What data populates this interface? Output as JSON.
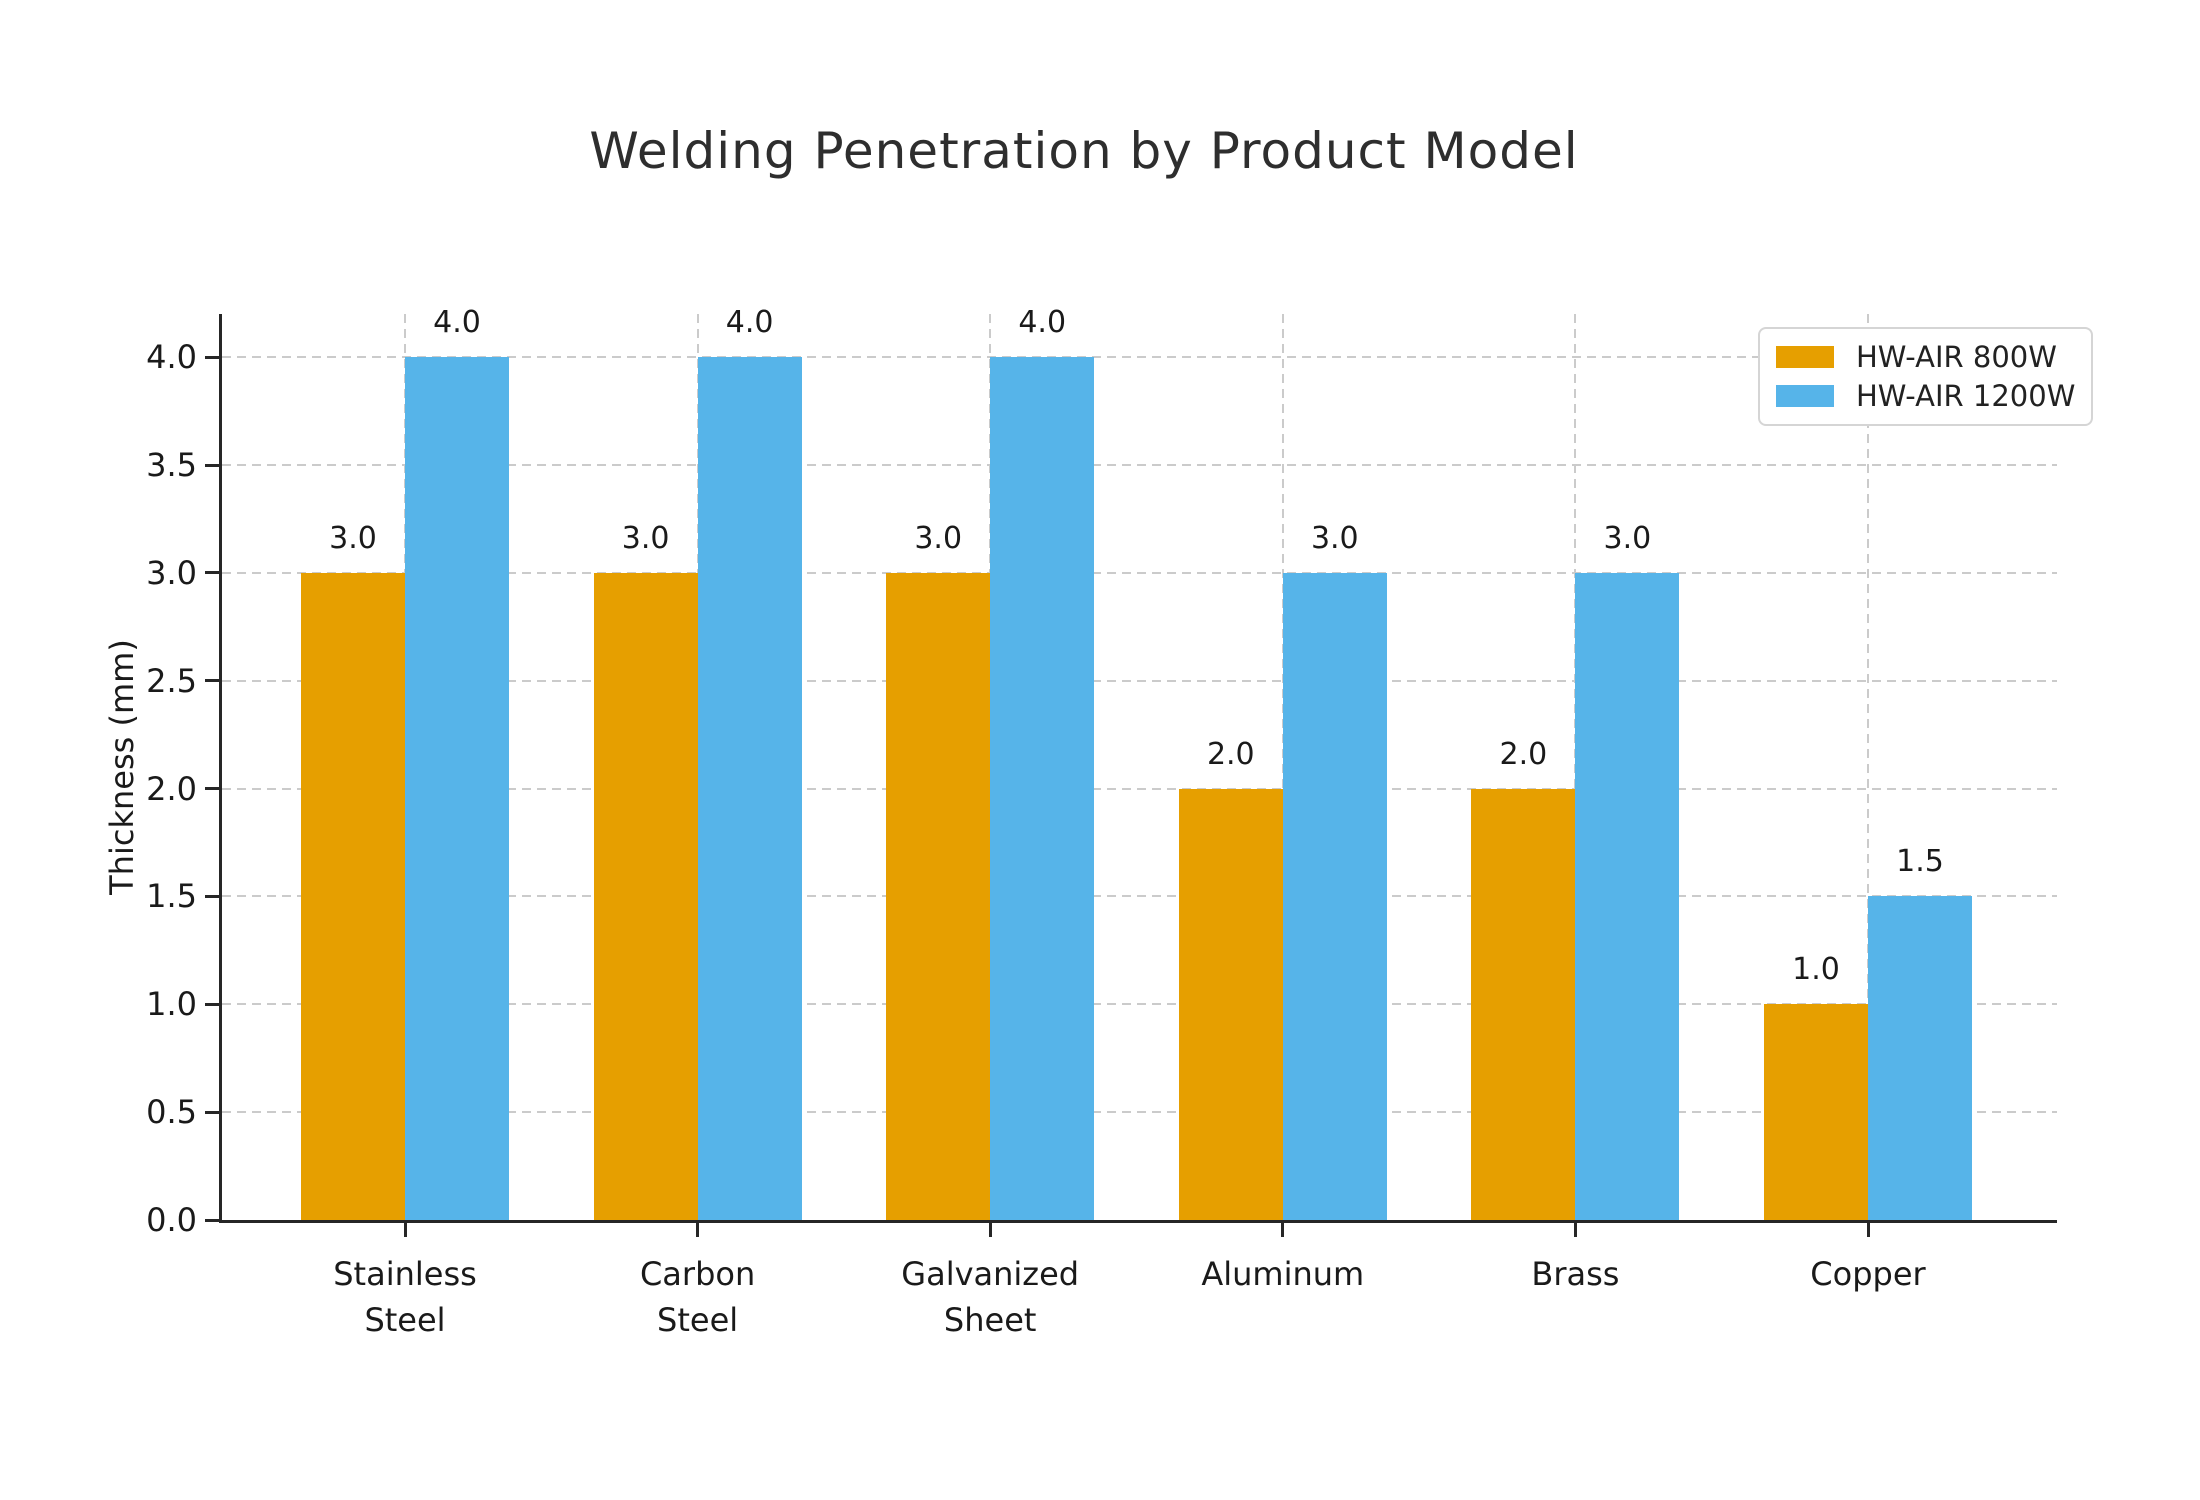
{
  "title": "Welding Penetration by Product Model",
  "chart_data": {
    "type": "bar",
    "title": "Welding Penetration by Product Model",
    "categories": [
      "Stainless Steel",
      "Carbon Steel",
      "Galvanized Sheet",
      "Aluminum",
      "Brass",
      "Copper"
    ],
    "category_label_lines": [
      [
        "Stainless",
        "Steel"
      ],
      [
        "Carbon",
        "Steel"
      ],
      [
        "Galvanized",
        "Sheet"
      ],
      [
        "Aluminum"
      ],
      [
        "Brass"
      ],
      [
        "Copper"
      ]
    ],
    "series": [
      {
        "name": "HW-AIR 800W",
        "color": "#E69F00",
        "values": [
          3.0,
          3.0,
          3.0,
          2.0,
          2.0,
          1.0
        ]
      },
      {
        "name": "HW-AIR 1200W",
        "color": "#56B4E9",
        "values": [
          4.0,
          4.0,
          4.0,
          3.0,
          3.0,
          1.5
        ]
      }
    ],
    "xlabel": "",
    "ylabel": "Thickness (mm)",
    "ylim": [
      0,
      4.2
    ],
    "yticks": [
      0.0,
      0.5,
      1.0,
      1.5,
      2.0,
      2.5,
      3.0,
      3.5,
      4.0
    ],
    "ytick_labels": [
      "0.0",
      "0.5",
      "1.0",
      "1.5",
      "2.0",
      "2.5",
      "3.0",
      "3.5",
      "4.0"
    ],
    "bar_value_labels": [
      "3.0",
      "4.0",
      "3.0",
      "4.0",
      "3.0",
      "4.0",
      "2.0",
      "3.0",
      "2.0",
      "3.0",
      "1.0",
      "1.5"
    ],
    "grid": {
      "show": true,
      "style": "dashed",
      "axes": "both"
    },
    "legend": {
      "position": "upper-right",
      "entries": [
        "HW-AIR 800W",
        "HW-AIR 1200W"
      ]
    }
  },
  "colors": {
    "background": "#ffffff",
    "bar_800w": "#E69F00",
    "bar_1200w": "#56B4E9",
    "grid": "#cbcbcb",
    "axis": "#262626",
    "text": "#1a1a1a"
  }
}
